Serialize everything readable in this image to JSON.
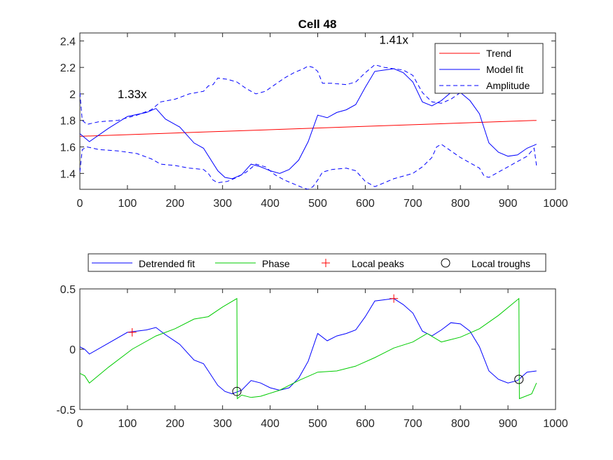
{
  "figure_title": "Cell 48",
  "colors": {
    "trend": "#ff0000",
    "model": "#0000ff",
    "phase": "#00cc00",
    "peak": "#ff0000",
    "trough": "#000000",
    "axis": "#262626"
  },
  "chart_data": [
    {
      "type": "line",
      "title": "Cell 48",
      "xlabel": "",
      "ylabel": "",
      "xlim": [
        0,
        1000
      ],
      "ylim": [
        1.28,
        2.46
      ],
      "xticks": [
        "0",
        "100",
        "200",
        "300",
        "400",
        "500",
        "600",
        "700",
        "800",
        "900",
        "1000"
      ],
      "yticks": [
        "1.4",
        "1.6",
        "1.8",
        "2",
        "2.2",
        "2.4"
      ],
      "ytick_values": [
        1.4,
        1.6,
        1.8,
        2.0,
        2.2,
        2.4
      ],
      "legend": {
        "position": "top-right",
        "entries": [
          "Trend",
          "Model fit",
          "Amplitude"
        ]
      },
      "annotations": [
        {
          "text": "1.33x",
          "x": 110,
          "y": 2.0
        },
        {
          "text": "1.41x",
          "x": 660,
          "y": 2.41
        }
      ],
      "series": [
        {
          "name": "Trend",
          "style": "solid",
          "color": "#ff0000",
          "x": [
            0,
            960
          ],
          "y": [
            1.68,
            1.8
          ]
        },
        {
          "name": "Model fit",
          "style": "solid",
          "color": "#0000ff",
          "x": [
            0,
            20,
            60,
            100,
            140,
            160,
            180,
            210,
            240,
            260,
            290,
            305,
            320,
            340,
            360,
            380,
            400,
            420,
            440,
            460,
            480,
            500,
            520,
            540,
            560,
            580,
            600,
            620,
            640,
            660,
            680,
            700,
            720,
            740,
            760,
            780,
            800,
            820,
            840,
            860,
            880,
            900,
            920,
            940,
            960
          ],
          "y": [
            1.7,
            1.64,
            1.74,
            1.83,
            1.86,
            1.89,
            1.81,
            1.75,
            1.63,
            1.59,
            1.42,
            1.37,
            1.36,
            1.39,
            1.47,
            1.45,
            1.42,
            1.4,
            1.43,
            1.5,
            1.64,
            1.84,
            1.82,
            1.86,
            1.88,
            1.92,
            2.05,
            2.17,
            2.18,
            2.19,
            2.16,
            2.09,
            1.94,
            1.91,
            1.95,
            2.01,
            2.01,
            1.95,
            1.85,
            1.63,
            1.56,
            1.53,
            1.54,
            1.59,
            1.62
          ]
        },
        {
          "name": "Amplitude (upper)",
          "style": "dashed",
          "color": "#0000ff",
          "x": [
            0,
            5,
            15,
            40,
            80,
            120,
            150,
            170,
            200,
            230,
            260,
            270,
            280,
            290,
            310,
            330,
            350,
            370,
            390,
            410,
            430,
            450,
            470,
            480,
            490,
            500,
            510,
            530,
            560,
            580,
            600,
            620,
            640,
            660,
            680,
            700,
            720,
            740,
            760,
            780,
            800,
            820,
            840,
            860,
            880,
            900,
            920,
            940
          ],
          "y": [
            2.01,
            1.8,
            1.77,
            1.79,
            1.8,
            1.84,
            1.88,
            1.94,
            1.96,
            2.0,
            2.02,
            2.06,
            2.07,
            2.12,
            2.11,
            2.09,
            2.04,
            2.0,
            2.02,
            2.07,
            2.12,
            2.16,
            2.19,
            2.21,
            2.2,
            2.17,
            2.08,
            2.08,
            2.07,
            2.09,
            2.16,
            2.22,
            2.2,
            2.19,
            2.18,
            2.14,
            2.01,
            1.94,
            1.93,
            1.96,
            2.01,
            2.12,
            2.19,
            2.14,
            2.08,
            2.04,
            2.04,
            2.04
          ]
        },
        {
          "name": "Amplitude (lower)",
          "style": "dashed",
          "color": "#0000ff",
          "x": [
            0,
            5,
            15,
            40,
            80,
            120,
            150,
            170,
            200,
            230,
            260,
            270,
            280,
            290,
            310,
            330,
            350,
            370,
            390,
            410,
            430,
            450,
            470,
            480,
            490,
            500,
            510,
            530,
            560,
            580,
            600,
            620,
            640,
            660,
            680,
            700,
            720,
            740,
            750,
            760,
            780,
            800,
            820,
            840,
            850,
            860,
            880,
            900,
            920,
            940,
            955,
            960
          ],
          "y": [
            1.41,
            1.58,
            1.6,
            1.58,
            1.57,
            1.55,
            1.51,
            1.47,
            1.46,
            1.44,
            1.43,
            1.4,
            1.35,
            1.33,
            1.34,
            1.37,
            1.41,
            1.47,
            1.45,
            1.39,
            1.35,
            1.32,
            1.29,
            1.28,
            1.3,
            1.35,
            1.41,
            1.43,
            1.44,
            1.42,
            1.34,
            1.3,
            1.33,
            1.36,
            1.38,
            1.4,
            1.45,
            1.52,
            1.6,
            1.62,
            1.57,
            1.52,
            1.48,
            1.44,
            1.38,
            1.37,
            1.41,
            1.45,
            1.49,
            1.53,
            1.59,
            1.46
          ]
        }
      ]
    },
    {
      "type": "line",
      "title": "",
      "xlabel": "",
      "ylabel": "",
      "xlim": [
        0,
        1000
      ],
      "ylim": [
        -0.5,
        0.5
      ],
      "xticks": [
        "0",
        "100",
        "200",
        "300",
        "400",
        "500",
        "600",
        "700",
        "800",
        "900",
        "1000"
      ],
      "yticks": [
        "-0.5",
        "0",
        "0.5"
      ],
      "ytick_values": [
        -0.5,
        0,
        0.5
      ],
      "legend": {
        "position": "above-horizontal",
        "entries": [
          "Detrended fit",
          "Phase",
          "Local peaks",
          "Local troughs"
        ]
      },
      "series": [
        {
          "name": "Detrended fit",
          "style": "solid",
          "color": "#0000ff",
          "x": [
            0,
            10,
            20,
            60,
            100,
            140,
            160,
            180,
            210,
            240,
            260,
            290,
            305,
            320,
            340,
            360,
            380,
            400,
            420,
            440,
            460,
            480,
            500,
            520,
            540,
            560,
            580,
            600,
            620,
            640,
            660,
            680,
            700,
            720,
            740,
            760,
            780,
            800,
            820,
            840,
            860,
            880,
            900,
            920,
            940,
            960
          ],
          "y": [
            0.02,
            0.0,
            -0.04,
            0.05,
            0.14,
            0.16,
            0.18,
            0.12,
            0.04,
            -0.09,
            -0.12,
            -0.3,
            -0.35,
            -0.37,
            -0.34,
            -0.26,
            -0.28,
            -0.32,
            -0.34,
            -0.32,
            -0.24,
            -0.1,
            0.13,
            0.07,
            0.11,
            0.13,
            0.16,
            0.27,
            0.4,
            0.41,
            0.42,
            0.37,
            0.3,
            0.15,
            0.11,
            0.16,
            0.22,
            0.21,
            0.15,
            0.02,
            -0.18,
            -0.25,
            -0.28,
            -0.26,
            -0.19,
            -0.18
          ]
        },
        {
          "name": "Phase",
          "style": "solid",
          "color": "#00cc00",
          "x": [
            0,
            10,
            20,
            60,
            110,
            160,
            200,
            240,
            270,
            300,
            330,
            331,
            340,
            360,
            380,
            420,
            460,
            500,
            540,
            580,
            620,
            660,
            700,
            730,
            760,
            800,
            840,
            880,
            923,
            924,
            950,
            960
          ],
          "y": [
            -0.2,
            -0.22,
            -0.28,
            -0.15,
            0.0,
            0.11,
            0.17,
            0.25,
            0.27,
            0.35,
            0.42,
            -0.41,
            -0.38,
            -0.4,
            -0.39,
            -0.34,
            -0.26,
            -0.19,
            -0.18,
            -0.14,
            -0.07,
            0.01,
            0.06,
            0.13,
            0.06,
            0.1,
            0.17,
            0.28,
            0.42,
            -0.41,
            -0.37,
            -0.28
          ]
        }
      ],
      "peaks": [
        {
          "x": 110,
          "y": 0.14
        },
        {
          "x": 660,
          "y": 0.42
        }
      ],
      "troughs": [
        {
          "x": 330,
          "y": -0.35
        },
        {
          "x": 923,
          "y": -0.25
        }
      ]
    }
  ]
}
